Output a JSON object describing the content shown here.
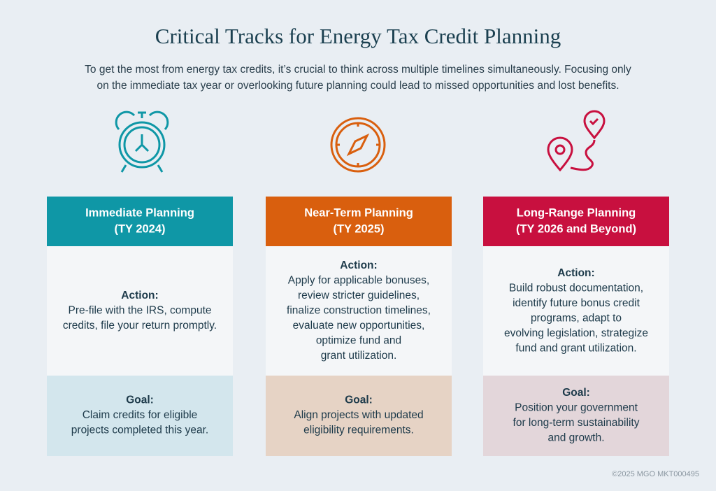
{
  "header": {
    "title": "Critical Tracks for Energy Tax Credit Planning",
    "intro": [
      "To get the most from energy tax credits, it’s crucial to think across multiple timelines simultaneously. Focusing only",
      "on the immediate tax year or overlooking future planning could lead to missed opportunities and lost benefits."
    ]
  },
  "tracks": [
    {
      "title": "Immediate Planning",
      "subtitle": "(TY 2024)",
      "action_label": "Action:",
      "action": [
        "Pre-file with the IRS, compute",
        "credits, file your return promptly."
      ],
      "goal_label": "Goal:",
      "goal": [
        "Claim credits for eligible",
        "projects completed this year."
      ]
    },
    {
      "title": "Near-Term Planning",
      "subtitle": "(TY 2025)",
      "action_label": "Action:",
      "action": [
        "Apply for applicable bonuses,",
        "review stricter guidelines,",
        "finalize construction timelines,",
        "evaluate new opportunities,",
        "optimize fund and",
        "grant utilization."
      ],
      "goal_label": "Goal:",
      "goal": [
        "Align projects with updated",
        "eligibility requirements."
      ]
    },
    {
      "title": "Long-Range Planning",
      "subtitle": "(TY 2026 and Beyond)",
      "action_label": "Action:",
      "action": [
        "Build robust documentation,",
        "identify future bonus credit",
        "programs, adapt to",
        "evolving legislation, strategize",
        "fund and grant utilization."
      ],
      "goal_label": "Goal:",
      "goal": [
        "Position your government",
        "for long-term sustainability",
        "and growth."
      ]
    }
  ],
  "footer": "©2025 MGO  MKT000495"
}
